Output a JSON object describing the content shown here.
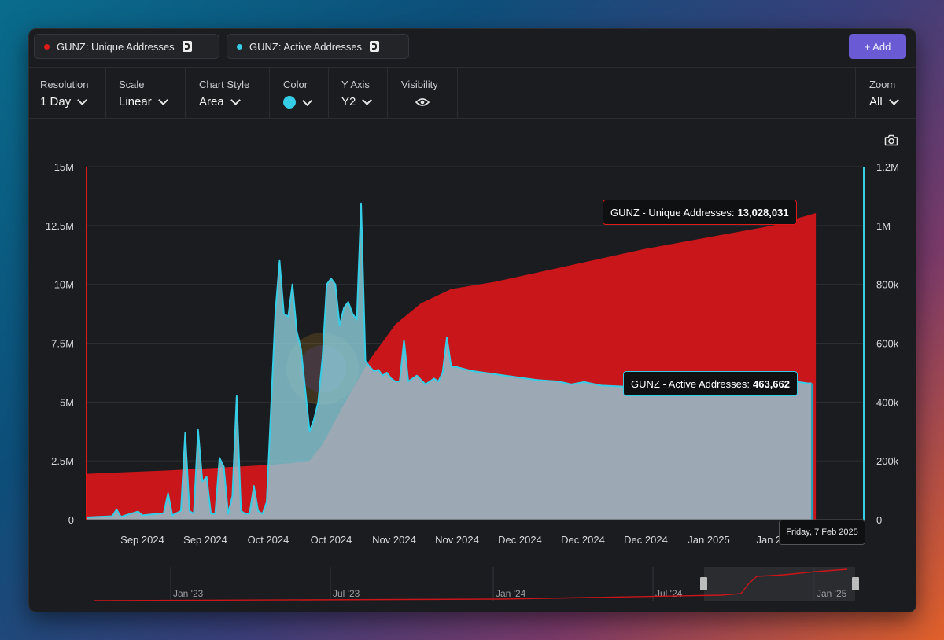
{
  "series_chips": [
    {
      "label": "GUNZ: Unique Addresses",
      "color": "#e01919"
    },
    {
      "label": "GUNZ: Active Addresses",
      "color": "#36cde6"
    }
  ],
  "add_button": "+ Add",
  "controls": {
    "resolution": {
      "label": "Resolution",
      "value": "1 Day"
    },
    "scale": {
      "label": "Scale",
      "value": "Linear"
    },
    "chart_style": {
      "label": "Chart Style",
      "value": "Area"
    },
    "color": {
      "label": "Color",
      "value": "#36cde6"
    },
    "y_axis": {
      "label": "Y Axis",
      "value": "Y2"
    },
    "visibility": {
      "label": "Visibility"
    },
    "zoom": {
      "label": "Zoom",
      "value": "All"
    }
  },
  "icons": [
    "camera-icon",
    "eye-icon",
    "chevron-down-icon",
    "document-icon"
  ],
  "watermark": "routescan.io",
  "tooltips": {
    "unique": {
      "label": "GUNZ - Unique Addresses:",
      "value": "13,028,031"
    },
    "active": {
      "label": "GUNZ - Active Addresses:",
      "value": "463,662"
    },
    "date": "Friday, 7 Feb 2025"
  },
  "navigator": {
    "labels": [
      "Jan '23",
      "Jul '23",
      "Jan '24",
      "Jul '24",
      "Jan '25"
    ]
  },
  "chart_data": {
    "type": "area",
    "x_labels": [
      "Sep 2024",
      "Sep 2024",
      "Oct 2024",
      "Oct 2024",
      "Nov 2024",
      "Nov 2024",
      "Dec 2024",
      "Dec 2024",
      "Dec 2024",
      "Jan 2025",
      "Jan 20"
    ],
    "y_left": {
      "ticks": [
        "0",
        "2.5M",
        "5M",
        "7.5M",
        "10M",
        "12.5M",
        "15M"
      ],
      "range": [
        0,
        15000000
      ]
    },
    "y_right": {
      "ticks": [
        "0",
        "200k",
        "400k",
        "600k",
        "800k",
        "1M",
        "1.2M"
      ],
      "range": [
        0,
        1200000
      ]
    },
    "x_range": [
      0,
      172
    ],
    "series": [
      {
        "name": "GUNZ: Unique Addresses",
        "axis": "left",
        "color": "#c8161a",
        "points": [
          [
            0,
            1950000
          ],
          [
            20,
            2100000
          ],
          [
            40,
            2300000
          ],
          [
            48,
            2400000
          ],
          [
            52,
            2500000
          ],
          [
            55,
            3200000
          ],
          [
            60,
            4900000
          ],
          [
            66,
            6800000
          ],
          [
            72,
            8300000
          ],
          [
            78,
            9200000
          ],
          [
            85,
            9800000
          ],
          [
            95,
            10100000
          ],
          [
            105,
            10500000
          ],
          [
            115,
            10900000
          ],
          [
            130,
            11500000
          ],
          [
            145,
            12000000
          ],
          [
            160,
            12500000
          ],
          [
            170,
            13028031
          ]
        ]
      },
      {
        "name": "GUNZ: Active Addresses",
        "axis": "right",
        "color": "#36cde6",
        "points": [
          [
            0,
            8000
          ],
          [
            6,
            12000
          ],
          [
            7,
            35000
          ],
          [
            8,
            10000
          ],
          [
            12,
            28000
          ],
          [
            13,
            15000
          ],
          [
            18,
            22000
          ],
          [
            19,
            90000
          ],
          [
            20,
            15000
          ],
          [
            22,
            30000
          ],
          [
            23,
            295000
          ],
          [
            24,
            30000
          ],
          [
            25,
            20000
          ],
          [
            26,
            305000
          ],
          [
            27,
            130000
          ],
          [
            28,
            145000
          ],
          [
            29,
            20000
          ],
          [
            30,
            20000
          ],
          [
            31,
            210000
          ],
          [
            32,
            180000
          ],
          [
            33,
            20000
          ],
          [
            34,
            80000
          ],
          [
            35,
            420000
          ],
          [
            36,
            30000
          ],
          [
            37,
            20000
          ],
          [
            38,
            20000
          ],
          [
            39,
            115000
          ],
          [
            40,
            30000
          ],
          [
            41,
            20000
          ],
          [
            42,
            60000
          ],
          [
            44,
            700000
          ],
          [
            45,
            880000
          ],
          [
            46,
            700000
          ],
          [
            47,
            690000
          ],
          [
            48,
            800000
          ],
          [
            49,
            640000
          ],
          [
            50,
            580000
          ],
          [
            51,
            440000
          ],
          [
            52,
            300000
          ],
          [
            53,
            340000
          ],
          [
            54,
            400000
          ],
          [
            55,
            550000
          ],
          [
            56,
            800000
          ],
          [
            57,
            820000
          ],
          [
            58,
            800000
          ],
          [
            59,
            660000
          ],
          [
            60,
            720000
          ],
          [
            61,
            740000
          ],
          [
            62,
            700000
          ],
          [
            63,
            680000
          ],
          [
            64,
            1075000
          ],
          [
            65,
            540000
          ],
          [
            66,
            520000
          ],
          [
            67,
            505000
          ],
          [
            68,
            510000
          ],
          [
            69,
            490000
          ],
          [
            70,
            500000
          ],
          [
            71,
            480000
          ],
          [
            72,
            470000
          ],
          [
            73,
            470000
          ],
          [
            74,
            610000
          ],
          [
            75,
            470000
          ],
          [
            76,
            480000
          ],
          [
            77,
            490000
          ],
          [
            78,
            475000
          ],
          [
            79,
            460000
          ],
          [
            80,
            470000
          ],
          [
            81,
            480000
          ],
          [
            82,
            470000
          ],
          [
            83,
            500000
          ],
          [
            84,
            620000
          ],
          [
            85,
            520000
          ],
          [
            86,
            520000
          ],
          [
            90,
            505000
          ],
          [
            95,
            495000
          ],
          [
            100,
            485000
          ],
          [
            105,
            475000
          ],
          [
            110,
            470000
          ],
          [
            113,
            460000
          ],
          [
            116,
            468000
          ],
          [
            120,
            456000
          ],
          [
            126,
            452000
          ],
          [
            132,
            450000
          ],
          [
            138,
            460000
          ],
          [
            144,
            455000
          ],
          [
            150,
            458000
          ],
          [
            158,
            466000
          ],
          [
            163,
            470000
          ],
          [
            166,
            468000
          ],
          [
            168,
            463662
          ],
          [
            169,
            463662
          ]
        ]
      }
    ]
  }
}
